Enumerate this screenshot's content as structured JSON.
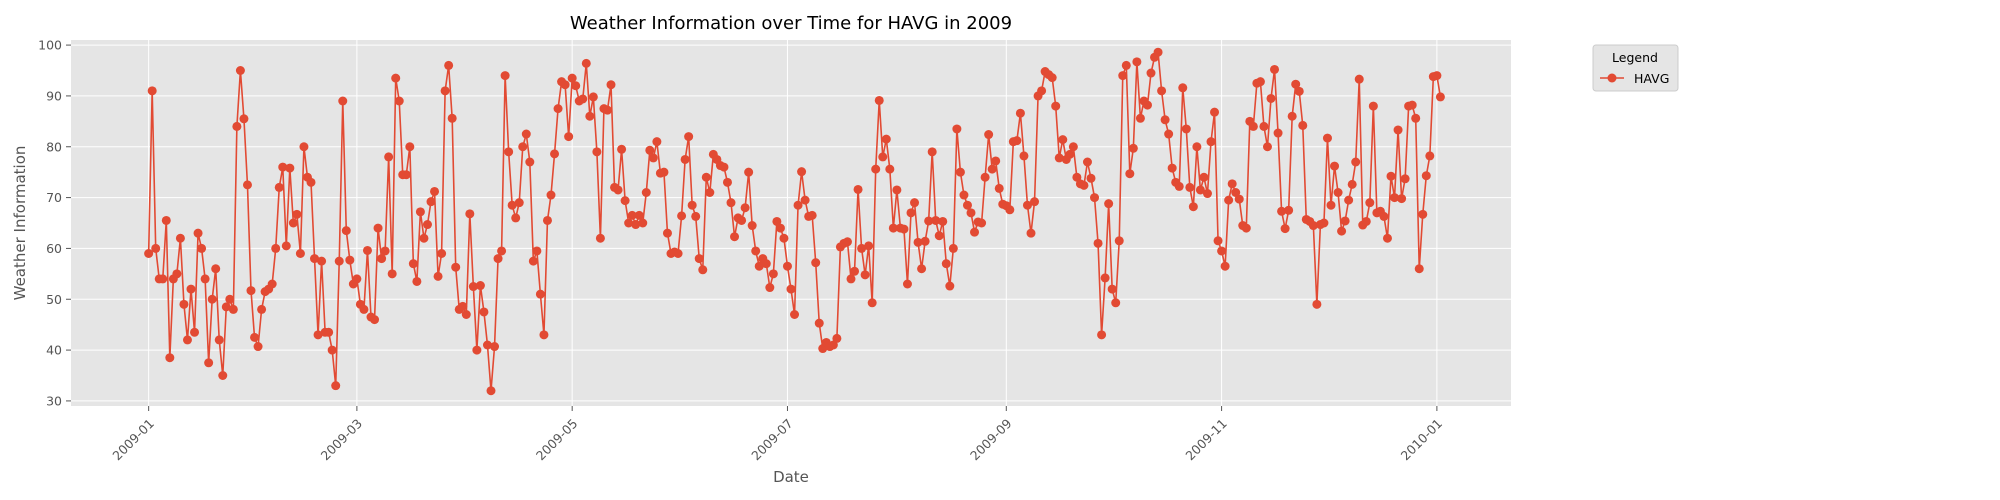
{
  "chart_data": {
    "type": "line",
    "title": "Weather Information over Time for HAVG in 2009",
    "xlabel": "Date",
    "ylabel": "Weather Information",
    "x_ticks": [
      "2009-01",
      "2009-03",
      "2009-05",
      "2009-07",
      "2009-09",
      "2009-11",
      "2010-01"
    ],
    "y_ticks": [
      30,
      40,
      50,
      60,
      70,
      80,
      90,
      100
    ],
    "xlim": [
      "2008-12-10",
      "2010-01-22"
    ],
    "ylim": [
      29,
      101
    ],
    "grid": true,
    "legend": {
      "title": "Legend",
      "placement": "outside-top-right"
    },
    "series": [
      {
        "name": "HAVG",
        "color": "#E24A33",
        "start_date": "2009-01-01",
        "step_days": 1,
        "values": [
          59,
          91,
          60,
          54,
          54,
          65.5,
          38.5,
          54,
          55,
          62,
          49,
          42,
          52,
          43.5,
          63,
          60,
          54,
          37.5,
          50,
          56,
          42,
          35,
          48.5,
          50,
          48,
          84,
          95,
          85.5,
          72.5,
          51.7,
          42.5,
          40.7,
          48,
          51.5,
          52,
          53,
          60,
          72,
          76,
          60.5,
          75.8,
          65,
          66.7,
          59,
          80,
          74,
          73,
          58,
          43,
          57.5,
          43.5,
          43.5,
          40,
          33,
          57.5,
          89,
          63.5,
          57.7,
          53,
          54,
          49,
          48,
          59.6,
          46.5,
          46,
          64,
          58,
          59.5,
          78,
          55,
          93.5,
          89,
          74.5,
          74.5,
          80,
          57,
          53.5,
          67.2,
          62,
          64.7,
          69.2,
          71.2,
          54.5,
          59,
          91,
          96,
          85.6,
          56.3,
          48,
          48.6,
          47,
          66.8,
          52.5,
          40,
          52.7,
          47.5,
          41,
          32,
          40.7,
          58,
          59.5,
          94,
          79,
          68.5,
          66,
          69,
          80,
          82.5,
          77,
          57.5,
          59.5,
          51,
          43,
          65.5,
          70.5,
          78.6,
          87.5,
          92.8,
          92.2,
          82,
          93.5,
          92,
          89,
          89.4,
          96.4,
          86,
          89.8,
          79,
          62,
          87.5,
          87.2,
          92.2,
          72,
          71.5,
          79.5,
          69.4,
          65,
          66.5,
          64.7,
          66.5,
          65,
          71,
          79.3,
          77.8,
          81,
          74.8,
          75,
          63,
          59,
          59.3,
          59,
          66.4,
          77.5,
          82,
          68.5,
          66.3,
          58,
          55.8,
          74,
          71,
          78.5,
          77.5,
          76.3,
          76,
          73,
          69,
          62.3,
          66,
          65.5,
          68,
          75,
          64.5,
          59.5,
          56.5,
          58,
          57,
          52.3,
          55,
          65.3,
          64,
          62,
          56.5,
          52,
          47,
          68.5,
          75.1,
          69.5,
          66.3,
          66.5,
          57.2,
          45.3,
          40.3,
          41.5,
          40.7,
          41,
          42.3,
          60.3,
          61,
          61.3,
          54,
          55.5,
          71.6,
          60,
          54.8,
          60.5,
          49.3,
          75.6,
          89.1,
          78,
          81.5,
          75.6,
          64,
          71.5,
          64,
          63.8,
          53,
          67,
          69,
          61.2,
          56,
          61.4,
          65.4,
          79,
          65.5,
          62.5,
          65.3,
          57,
          52.6,
          60,
          83.5,
          75,
          70.5,
          68.5,
          67,
          63.2,
          65.2,
          65,
          74,
          82.4,
          75.6,
          77.2,
          71.8,
          68.7,
          68.4,
          67.6,
          81,
          81.2,
          86.6,
          78.2,
          68.5,
          63,
          69.2,
          90,
          91,
          94.8,
          94.2,
          93.6,
          88,
          77.8,
          81.4,
          77.5,
          78.5,
          80,
          74,
          72.7,
          72.4,
          77,
          73.8,
          70,
          61,
          43,
          54.2,
          68.8,
          52,
          49.3,
          61.5,
          94,
          96,
          74.7,
          79.7,
          96.7,
          85.6,
          89,
          88.2,
          94.5,
          97.6,
          98.6,
          91,
          85.3,
          82.5,
          75.8,
          73,
          72.2,
          91.6,
          83.5,
          72,
          68.2,
          80,
          71.5,
          74,
          70.8,
          81,
          86.8,
          61.5,
          59.5,
          56.5,
          69.5,
          72.7,
          71,
          69.7,
          64.5,
          64,
          85,
          84,
          92.5,
          92.8,
          84,
          80,
          89.5,
          95.2,
          82.7,
          67.3,
          63.9,
          67.5,
          86,
          92.3,
          90.9,
          84.2,
          65.7,
          65.3,
          64.5,
          49,
          64.7,
          65,
          81.7,
          68.5,
          76.2,
          71,
          63.4,
          65.4,
          69.5,
          72.6,
          77,
          93.3,
          64.6,
          65.3,
          69,
          88,
          67,
          67.3,
          66.3,
          62,
          74.2,
          70,
          83.3,
          69.8,
          73.7,
          88,
          88.2,
          85.6,
          56,
          66.7,
          74.3,
          78.2,
          93.8,
          94,
          89.8
        ]
      }
    ]
  }
}
